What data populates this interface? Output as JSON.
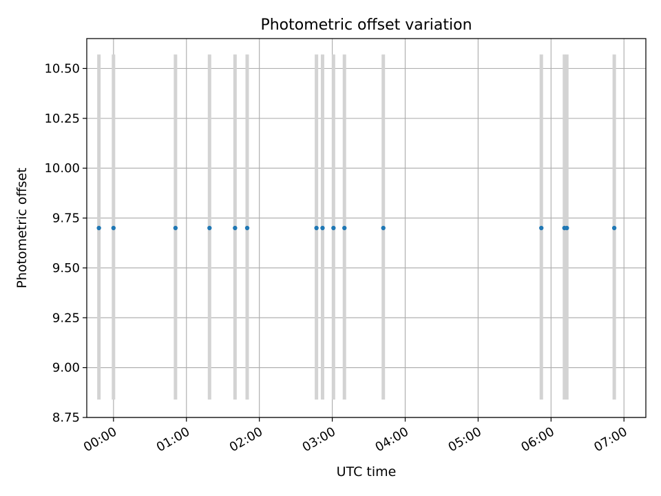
{
  "chart_data": {
    "type": "scatter",
    "title": "Photometric offset variation",
    "xlabel": "UTC time",
    "ylabel": "Photometric offset",
    "grid": true,
    "xlim": [
      "23:38",
      "07:18"
    ],
    "ylim": [
      8.75,
      10.65
    ],
    "x_ticks": [
      "00:00",
      "01:00",
      "02:00",
      "03:00",
      "04:00",
      "05:00",
      "06:00",
      "07:00"
    ],
    "y_ticks": [
      "8.75",
      "9.00",
      "9.25",
      "9.50",
      "9.75",
      "10.00",
      "10.25",
      "10.50"
    ],
    "colors": {
      "points": "#1f77b4",
      "error_bars": "#d3d3d3",
      "grid": "#b0b0b0"
    },
    "error_bar": {
      "low": 8.84,
      "high": 10.57
    },
    "series": [
      {
        "x": [
          "23:48",
          "00:00",
          "00:51",
          "01:19",
          "01:40",
          "01:50",
          "02:47",
          "02:52",
          "03:01",
          "03:10",
          "03:42",
          "05:52",
          "06:11",
          "06:13",
          "06:52"
        ],
        "y": [
          9.7,
          9.7,
          9.7,
          9.7,
          9.7,
          9.7,
          9.7,
          9.7,
          9.7,
          9.7,
          9.7,
          9.7,
          9.7,
          9.7,
          9.7
        ]
      }
    ]
  }
}
